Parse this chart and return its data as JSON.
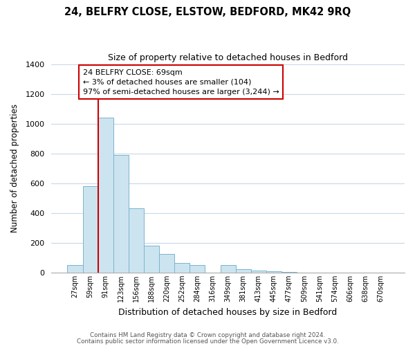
{
  "title": "24, BELFRY CLOSE, ELSTOW, BEDFORD, MK42 9RQ",
  "subtitle": "Size of property relative to detached houses in Bedford",
  "xlabel": "Distribution of detached houses by size in Bedford",
  "ylabel": "Number of detached properties",
  "bar_labels": [
    "27sqm",
    "59sqm",
    "91sqm",
    "123sqm",
    "156sqm",
    "188sqm",
    "220sqm",
    "252sqm",
    "284sqm",
    "316sqm",
    "349sqm",
    "381sqm",
    "413sqm",
    "445sqm",
    "477sqm",
    "509sqm",
    "541sqm",
    "574sqm",
    "606sqm",
    "638sqm",
    "670sqm"
  ],
  "bar_values": [
    50,
    580,
    1040,
    790,
    430,
    180,
    125,
    65,
    50,
    0,
    50,
    25,
    15,
    8,
    5,
    0,
    0,
    0,
    0,
    0,
    0
  ],
  "bar_color": "#cce4f0",
  "bar_edge_color": "#7ab4cc",
  "vline_color": "#cc0000",
  "vline_pos": 1.5,
  "ylim": [
    0,
    1400
  ],
  "yticks": [
    0,
    200,
    400,
    600,
    800,
    1000,
    1200,
    1400
  ],
  "annotation_box_text": "24 BELFRY CLOSE: 69sqm\n← 3% of detached houses are smaller (104)\n97% of semi-detached houses are larger (3,244) →",
  "footer_line1": "Contains HM Land Registry data © Crown copyright and database right 2024.",
  "footer_line2": "Contains public sector information licensed under the Open Government Licence v3.0.",
  "background_color": "#ffffff",
  "grid_color": "#c8d8e8"
}
